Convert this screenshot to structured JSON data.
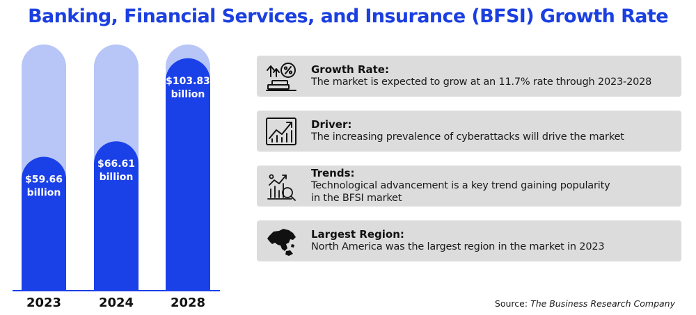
{
  "title": "Banking, Financial Services, and Insurance (BFSI) Growth Rate",
  "chart_data": {
    "type": "bar",
    "categories": [
      "2023",
      "2024",
      "2028"
    ],
    "values": [
      59.66,
      66.61,
      103.83
    ],
    "data_labels": [
      [
        "$59.66",
        "billion"
      ],
      [
        "$66.61",
        "billion"
      ],
      [
        "$103.83",
        "billion"
      ]
    ],
    "colors": {
      "bar": "#1a40e8",
      "track": "#b7c6f7",
      "axis": "#1a40e8"
    }
  },
  "cards": [
    {
      "icon": "growth-rate-icon",
      "heading": "Growth Rate:",
      "lines": [
        "The market is expected to grow at an 11.7% rate through 2023-2028"
      ]
    },
    {
      "icon": "driver-chart-icon",
      "heading": "Driver:",
      "lines": [
        "The increasing prevalence of cyberattacks will drive the market"
      ]
    },
    {
      "icon": "trends-analysis-icon",
      "heading": "Trends:",
      "lines": [
        "Technological advancement is a key trend gaining popularity",
        "in the BFSI market"
      ]
    },
    {
      "icon": "world-region-icon",
      "heading": "Largest Region:",
      "lines": [
        "North America was the largest region in the market in 2023"
      ]
    }
  ],
  "source": {
    "label": "Source:",
    "org": "The Business Research Company"
  }
}
